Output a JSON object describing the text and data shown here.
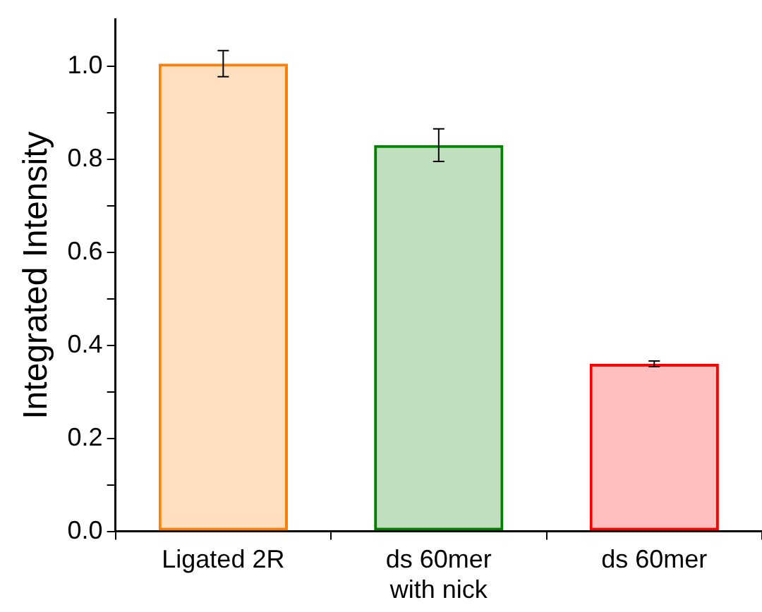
{
  "chart_data": {
    "type": "bar",
    "ylabel": "Integrated Intensity",
    "categories": [
      "Ligated 2R",
      "ds 60mer\nwith nick",
      "ds 60mer"
    ],
    "values": [
      1.005,
      0.83,
      0.36
    ],
    "colors": [
      "#ff7f00",
      "#008000",
      "#ff0000"
    ],
    "errors": [
      0.028,
      0.035,
      0.006
    ],
    "ylim": [
      0,
      1.1
    ],
    "yticks": [
      {
        "value": 0,
        "label": "0.0"
      },
      {
        "value": 0.1,
        "label": null
      },
      0.2,
      {
        "value": 0.3,
        "label": null
      },
      0.4,
      {
        "value": 0.5,
        "label": null
      },
      0.6,
      {
        "value": 0.7,
        "label": null
      },
      0.8,
      {
        "value": 0.9,
        "label": null
      },
      {
        "value": 1,
        "label": "1.0"
      }
    ],
    "grid": false,
    "legend": false
  }
}
